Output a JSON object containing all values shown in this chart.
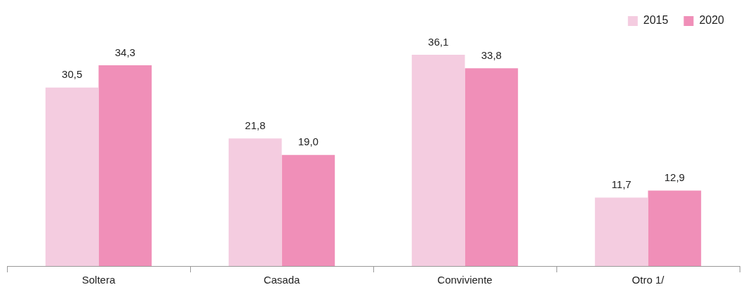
{
  "chart_data": {
    "type": "bar",
    "categories": [
      "Soltera",
      "Casada",
      "Conviviente",
      "Otro 1/"
    ],
    "series": [
      {
        "name": "2015",
        "color": "#f4cce0",
        "values": [
          30.5,
          21.8,
          36.1,
          11.7
        ],
        "value_labels": [
          "30,5",
          "21,8",
          "36,1",
          "11,7"
        ]
      },
      {
        "name": "2020",
        "color": "#f08fb8",
        "values": [
          34.3,
          19.0,
          33.8,
          12.9
        ],
        "value_labels": [
          "34,3",
          "19,0",
          "33,8",
          "12,9"
        ]
      }
    ],
    "legend": "top right",
    "grid": false
  }
}
